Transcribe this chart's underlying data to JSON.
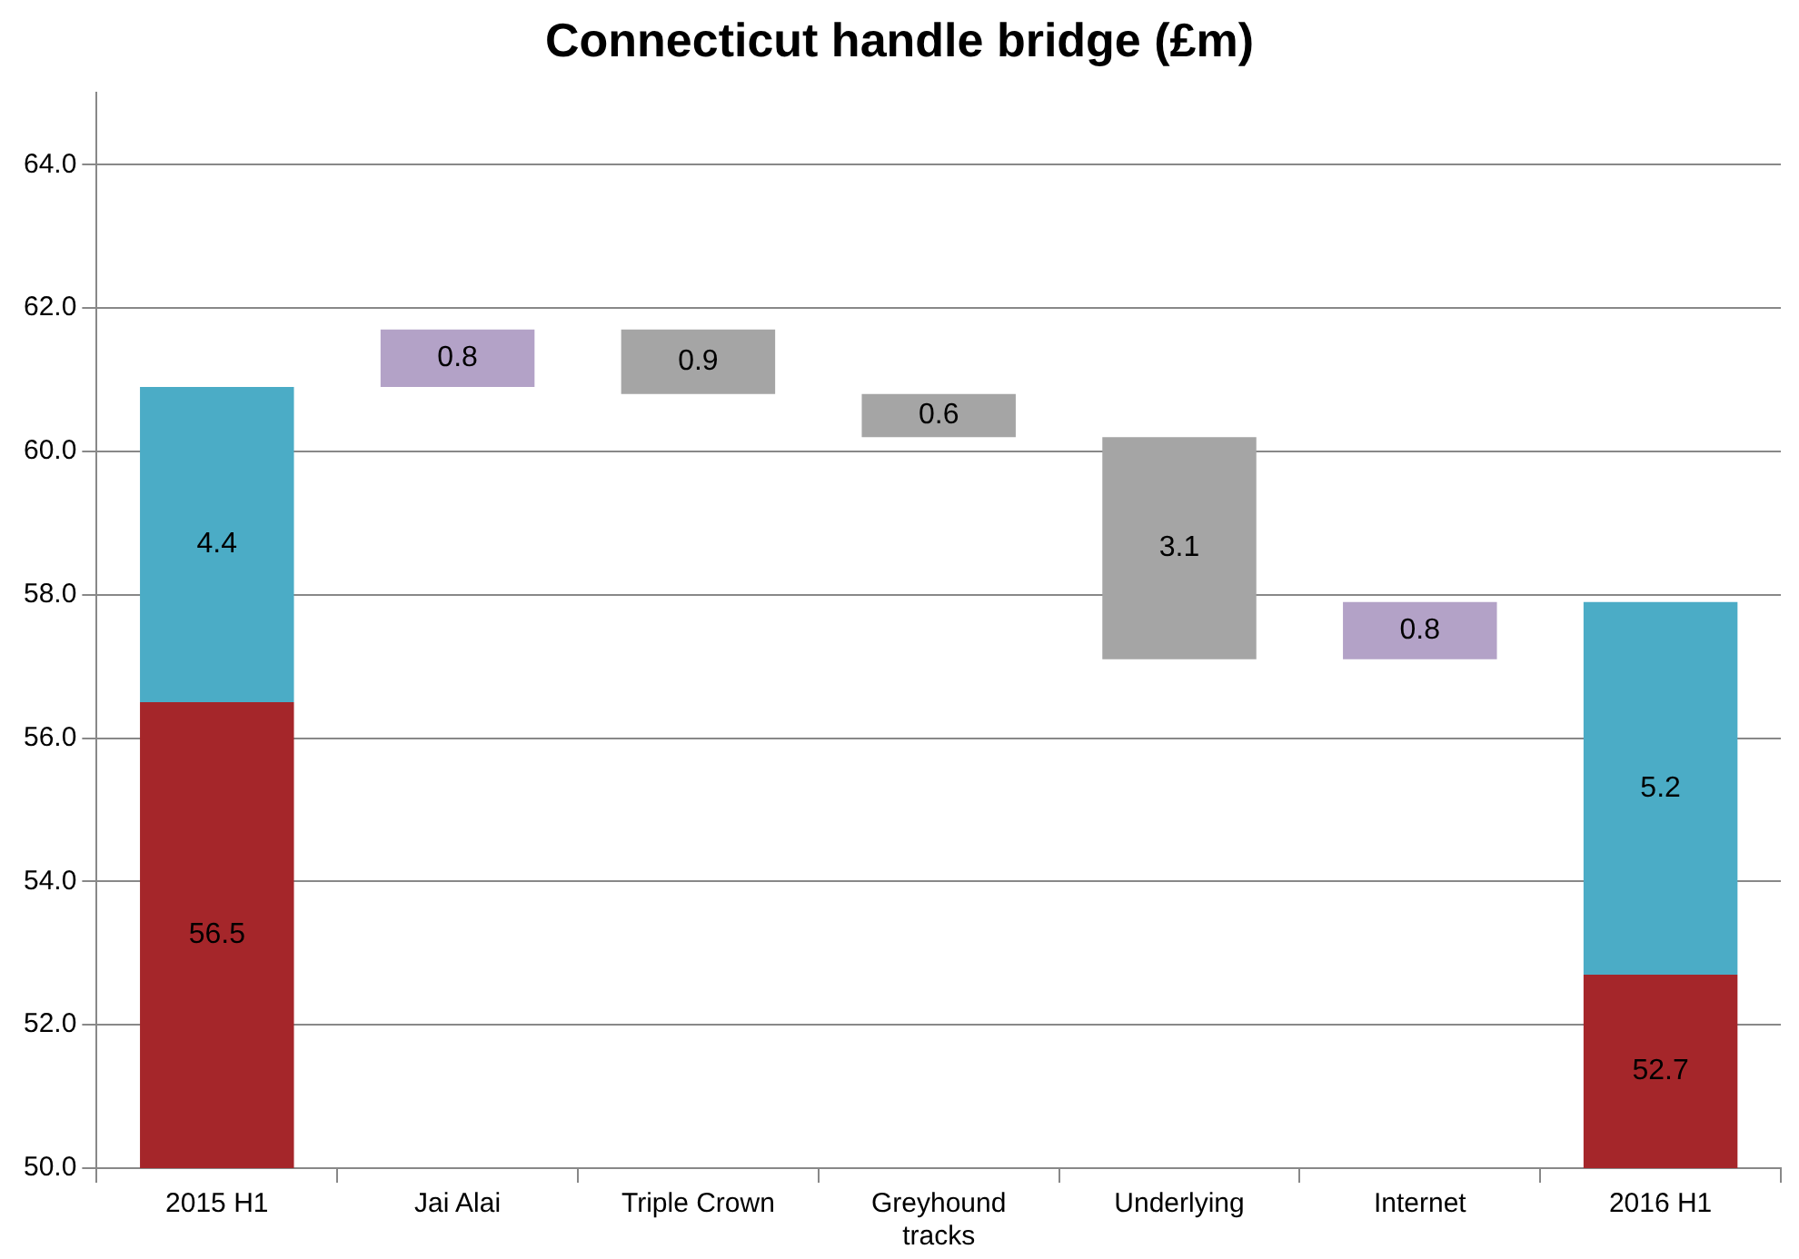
{
  "chart_data": {
    "type": "bar",
    "title": "Connecticut handle bridge (£m)",
    "categories": [
      "2015 H1",
      "Jai Alai",
      "Triple Crown",
      "Greyhound tracks",
      "Underlying",
      "Internet",
      "2016 H1"
    ],
    "series": [
      {
        "color": "#a5262a",
        "values": [
          56.5,
          null,
          null,
          null,
          null,
          null,
          52.7
        ]
      },
      {
        "color": "#4bacc6",
        "values": [
          4.4,
          null,
          null,
          null,
          null,
          null,
          5.2
        ],
        "base": [
          56.5,
          null,
          null,
          null,
          null,
          null,
          52.7
        ]
      },
      {
        "colors": [
          "#b3a2c7",
          "#b3a2c7",
          "#a5a5a5",
          "#a5a5a5",
          "#a5a5a5",
          "#b3a2c7",
          "#b3a2c7"
        ],
        "values": [
          null,
          0.8,
          0.9,
          0.6,
          3.1,
          0.8,
          null
        ],
        "base": [
          null,
          60.9,
          60.8,
          60.2,
          57.1,
          57.1,
          null
        ]
      }
    ],
    "ylim": [
      50,
      65
    ],
    "yticks": [
      {
        "value": 50,
        "label": "50.0"
      },
      {
        "value": 52,
        "label": "52.0"
      },
      {
        "value": 54,
        "label": "54.0"
      },
      {
        "value": 56,
        "label": "56.0"
      },
      {
        "value": 58,
        "label": "58.0"
      },
      {
        "value": 60,
        "label": "60.0"
      },
      {
        "value": 62,
        "label": "62.0"
      },
      {
        "value": 64,
        "label": "64.0"
      }
    ],
    "grid": "y",
    "legend": false,
    "data_labels": true
  }
}
